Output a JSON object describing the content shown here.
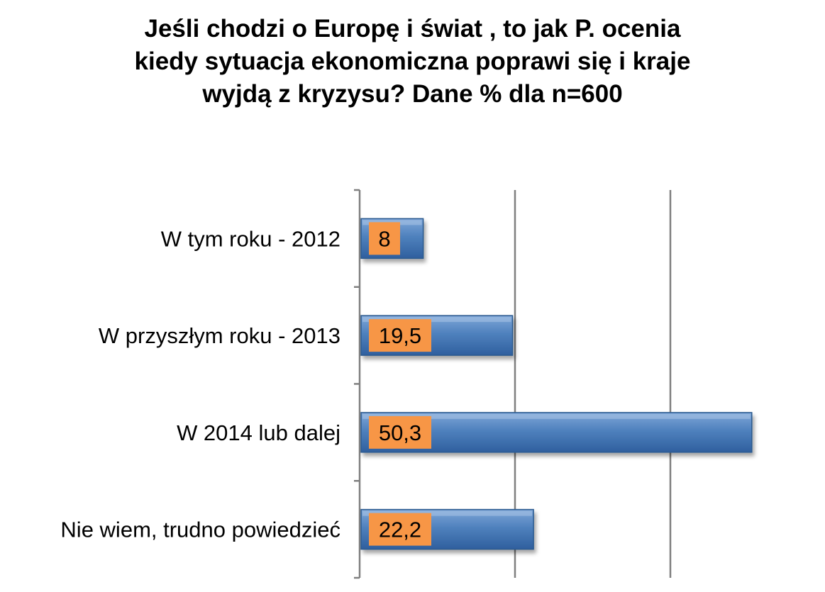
{
  "chart_data": {
    "type": "bar",
    "orientation": "horizontal",
    "title_lines": [
      "Jeśli chodzi o Europę i świat , to jak P. ocenia",
      "kiedy sytuacja ekonomiczna poprawi się i kraje",
      "wyjdą z kryzysu? Dane % dla n=600"
    ],
    "categories": [
      "W tym roku - 2012",
      "W przyszłym roku - 2013",
      "W 2014 lub dalej",
      "Nie wiem, trudno powiedzieć"
    ],
    "values": [
      8,
      19.5,
      50.3,
      22.2
    ],
    "data_labels": [
      "8",
      "19,5",
      "50,3",
      "22,2"
    ],
    "xlim": [
      0,
      60
    ],
    "gridlines_at": [
      20,
      40
    ],
    "grid": true,
    "legend": "none",
    "colors": {
      "bar": "#4f81bd",
      "bar_dark": "#2c5a8f",
      "label_box": "#f79646",
      "gridline": "#808080",
      "axis": "#808080"
    }
  }
}
